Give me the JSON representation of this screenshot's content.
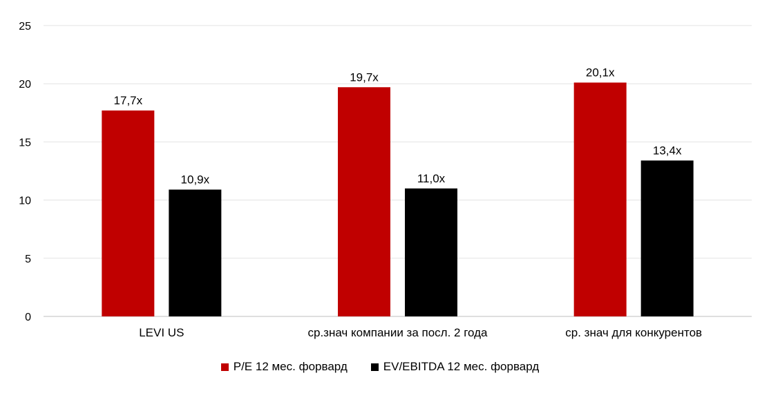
{
  "chart_data": {
    "type": "bar",
    "categories": [
      "LEVI US",
      "ср.знач компании за посл. 2 года",
      "ср. знач для конкурентов"
    ],
    "series": [
      {
        "name": "P/E 12 мес. форвард",
        "values": [
          17.7,
          19.7,
          20.1
        ],
        "labels": [
          "17,7x",
          "19,7x",
          "20,1x"
        ],
        "color": "#c00000"
      },
      {
        "name": "EV/EBITDA 12 мес. форвард",
        "values": [
          10.9,
          11.0,
          13.4
        ],
        "labels": [
          "10,9x",
          "11,0x",
          "13,4x"
        ],
        "color": "#000000"
      }
    ],
    "yticks": [
      "0",
      "5",
      "10",
      "15",
      "20",
      "25"
    ],
    "ylim": [
      0,
      25
    ],
    "grid": true,
    "legend_position": "bottom"
  }
}
